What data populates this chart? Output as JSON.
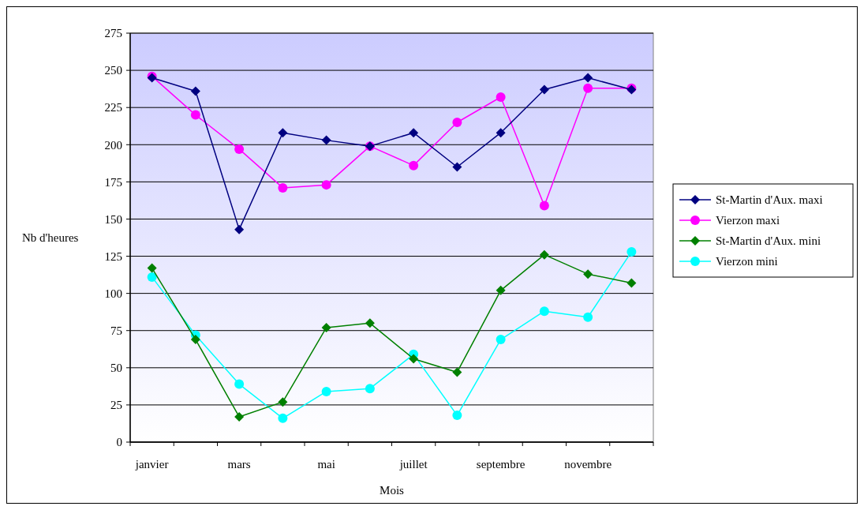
{
  "chart_data": {
    "type": "line",
    "xlabel": "Mois",
    "ylabel": "Nb d'heures",
    "categories": [
      "janvier",
      null,
      "mars",
      null,
      "mai",
      null,
      "juillet",
      null,
      "septembre",
      null,
      "novembre",
      null
    ],
    "series": [
      {
        "name": "St-Martin d'Aux. maxi",
        "color": "#000080",
        "marker": "diamond",
        "values": [
          245,
          236,
          143,
          208,
          203,
          199,
          208,
          185,
          208,
          237,
          245,
          237
        ]
      },
      {
        "name": "Vierzon maxi",
        "color": "#ff00ff",
        "marker": "circle",
        "values": [
          246,
          220,
          197,
          171,
          173,
          199,
          186,
          215,
          232,
          159,
          238,
          238
        ]
      },
      {
        "name": "St-Martin d'Aux. mini",
        "color": "#008000",
        "marker": "diamond",
        "values": [
          117,
          69,
          17,
          27,
          77,
          80,
          56,
          47,
          102,
          126,
          113,
          107
        ]
      },
      {
        "name": "Vierzon mini",
        "color": "#00ffff",
        "marker": "circle",
        "values": [
          111,
          72,
          39,
          16,
          34,
          36,
          59,
          18,
          69,
          88,
          84,
          128
        ]
      }
    ],
    "ylim": [
      0,
      275
    ],
    "yticks": [
      0,
      25,
      50,
      75,
      100,
      125,
      150,
      175,
      200,
      225,
      250,
      275
    ],
    "grid": "y",
    "legend": "right"
  }
}
